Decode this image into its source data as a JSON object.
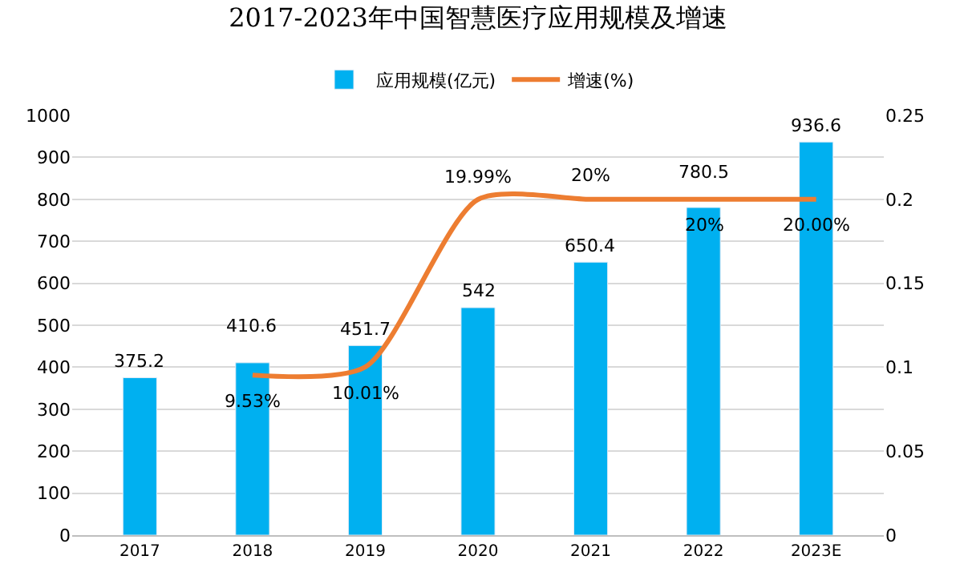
{
  "chart_data": {
    "type": "bar",
    "title": "2017-2023年中国智慧医疗应用规模及增速",
    "categories": [
      "2017",
      "2018",
      "2019",
      "2020",
      "2021",
      "2022",
      "2023E"
    ],
    "series": [
      {
        "name": "应用规模(亿元)",
        "color": "#00b0f0",
        "values": [
          375.2,
          410.6,
          451.7,
          542,
          650.4,
          780.5,
          936.6
        ],
        "value_labels": [
          "375.2",
          "410.6",
          "451.7",
          "542",
          "650.4",
          "780.5",
          "936.6"
        ]
      },
      {
        "name": "增速(%)",
        "type": "line",
        "axis": "y2",
        "color": "#ed7d31",
        "values": [
          null,
          0.0953,
          0.1001,
          0.1999,
          0.2,
          0.2,
          0.2
        ],
        "value_labels": [
          null,
          "9.53%",
          "10.01%",
          "19.99%",
          "20%",
          "20%",
          "20.00%"
        ]
      }
    ],
    "ylim": [
      0,
      1000
    ],
    "yticks": [
      0,
      100,
      200,
      300,
      400,
      500,
      600,
      700,
      800,
      900,
      1000
    ],
    "y2lim": [
      0,
      0.25
    ],
    "y2ticks": [
      0,
      0.05,
      0.1,
      0.15,
      0.2,
      0.25
    ],
    "grid": "y",
    "legend": "top",
    "marker": "none",
    "line_style": "solid"
  }
}
